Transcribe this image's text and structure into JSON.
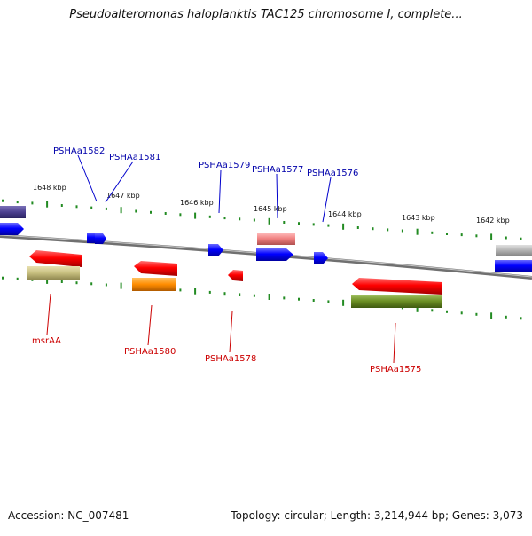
{
  "title": "Pseudoalteromonas haloplanktis TAC125 chromosome I, complete...",
  "footer": {
    "accession": "Accession: NC_007481",
    "topology": "Topology: circular; Length: 3,214,944 bp; Genes: 3,073"
  },
  "scale_ticks": [
    "1648 kbp",
    "1647 kbp",
    "1646 kbp",
    "1645 kbp",
    "1644 kbp",
    "1643 kbp",
    "1642 kbp"
  ],
  "genes": [
    {
      "id": "gene-PSHAa1582",
      "label": "PSHAa1582",
      "strand": "forward",
      "color": "#0000ff"
    },
    {
      "id": "gene-PSHAa1581",
      "label": "PSHAa1581",
      "strand": "forward",
      "color": "#0000ff"
    },
    {
      "id": "gene-PSHAa1579",
      "label": "PSHAa1579",
      "strand": "forward",
      "color": "#0000ff"
    },
    {
      "id": "gene-PSHAa1577",
      "label": "PSHAa1577",
      "strand": "forward",
      "color": "#0000ff"
    },
    {
      "id": "gene-PSHAa1576",
      "label": "PSHAa1576",
      "strand": "forward",
      "color": "#0000ff"
    },
    {
      "id": "gene-msrAA",
      "label": "msrAA",
      "strand": "reverse",
      "color": "#ff0000"
    },
    {
      "id": "gene-PSHAa1580",
      "label": "PSHAa1580",
      "strand": "reverse",
      "color": "#ff0000"
    },
    {
      "id": "gene-PSHAa1578",
      "label": "PSHAa1578",
      "strand": "reverse",
      "color": "#ff0000"
    },
    {
      "id": "gene-PSHAa1575",
      "label": "PSHAa1575",
      "strand": "reverse",
      "color": "#ff0000"
    }
  ],
  "colors": {
    "forward_gene": "#0000ff",
    "reverse_gene": "#ff0000",
    "forward_label": "#0000aa",
    "reverse_label": "#cc0000",
    "backbone": "#808080",
    "tick_marks": "#228b22",
    "feature_purple": "#4b3f8f",
    "feature_pink": "#f08080",
    "feature_khaki": "#c8c080",
    "feature_orange": "#ff8c00",
    "feature_olive": "#6b8e23",
    "feature_gray": "#b0b0b0"
  }
}
